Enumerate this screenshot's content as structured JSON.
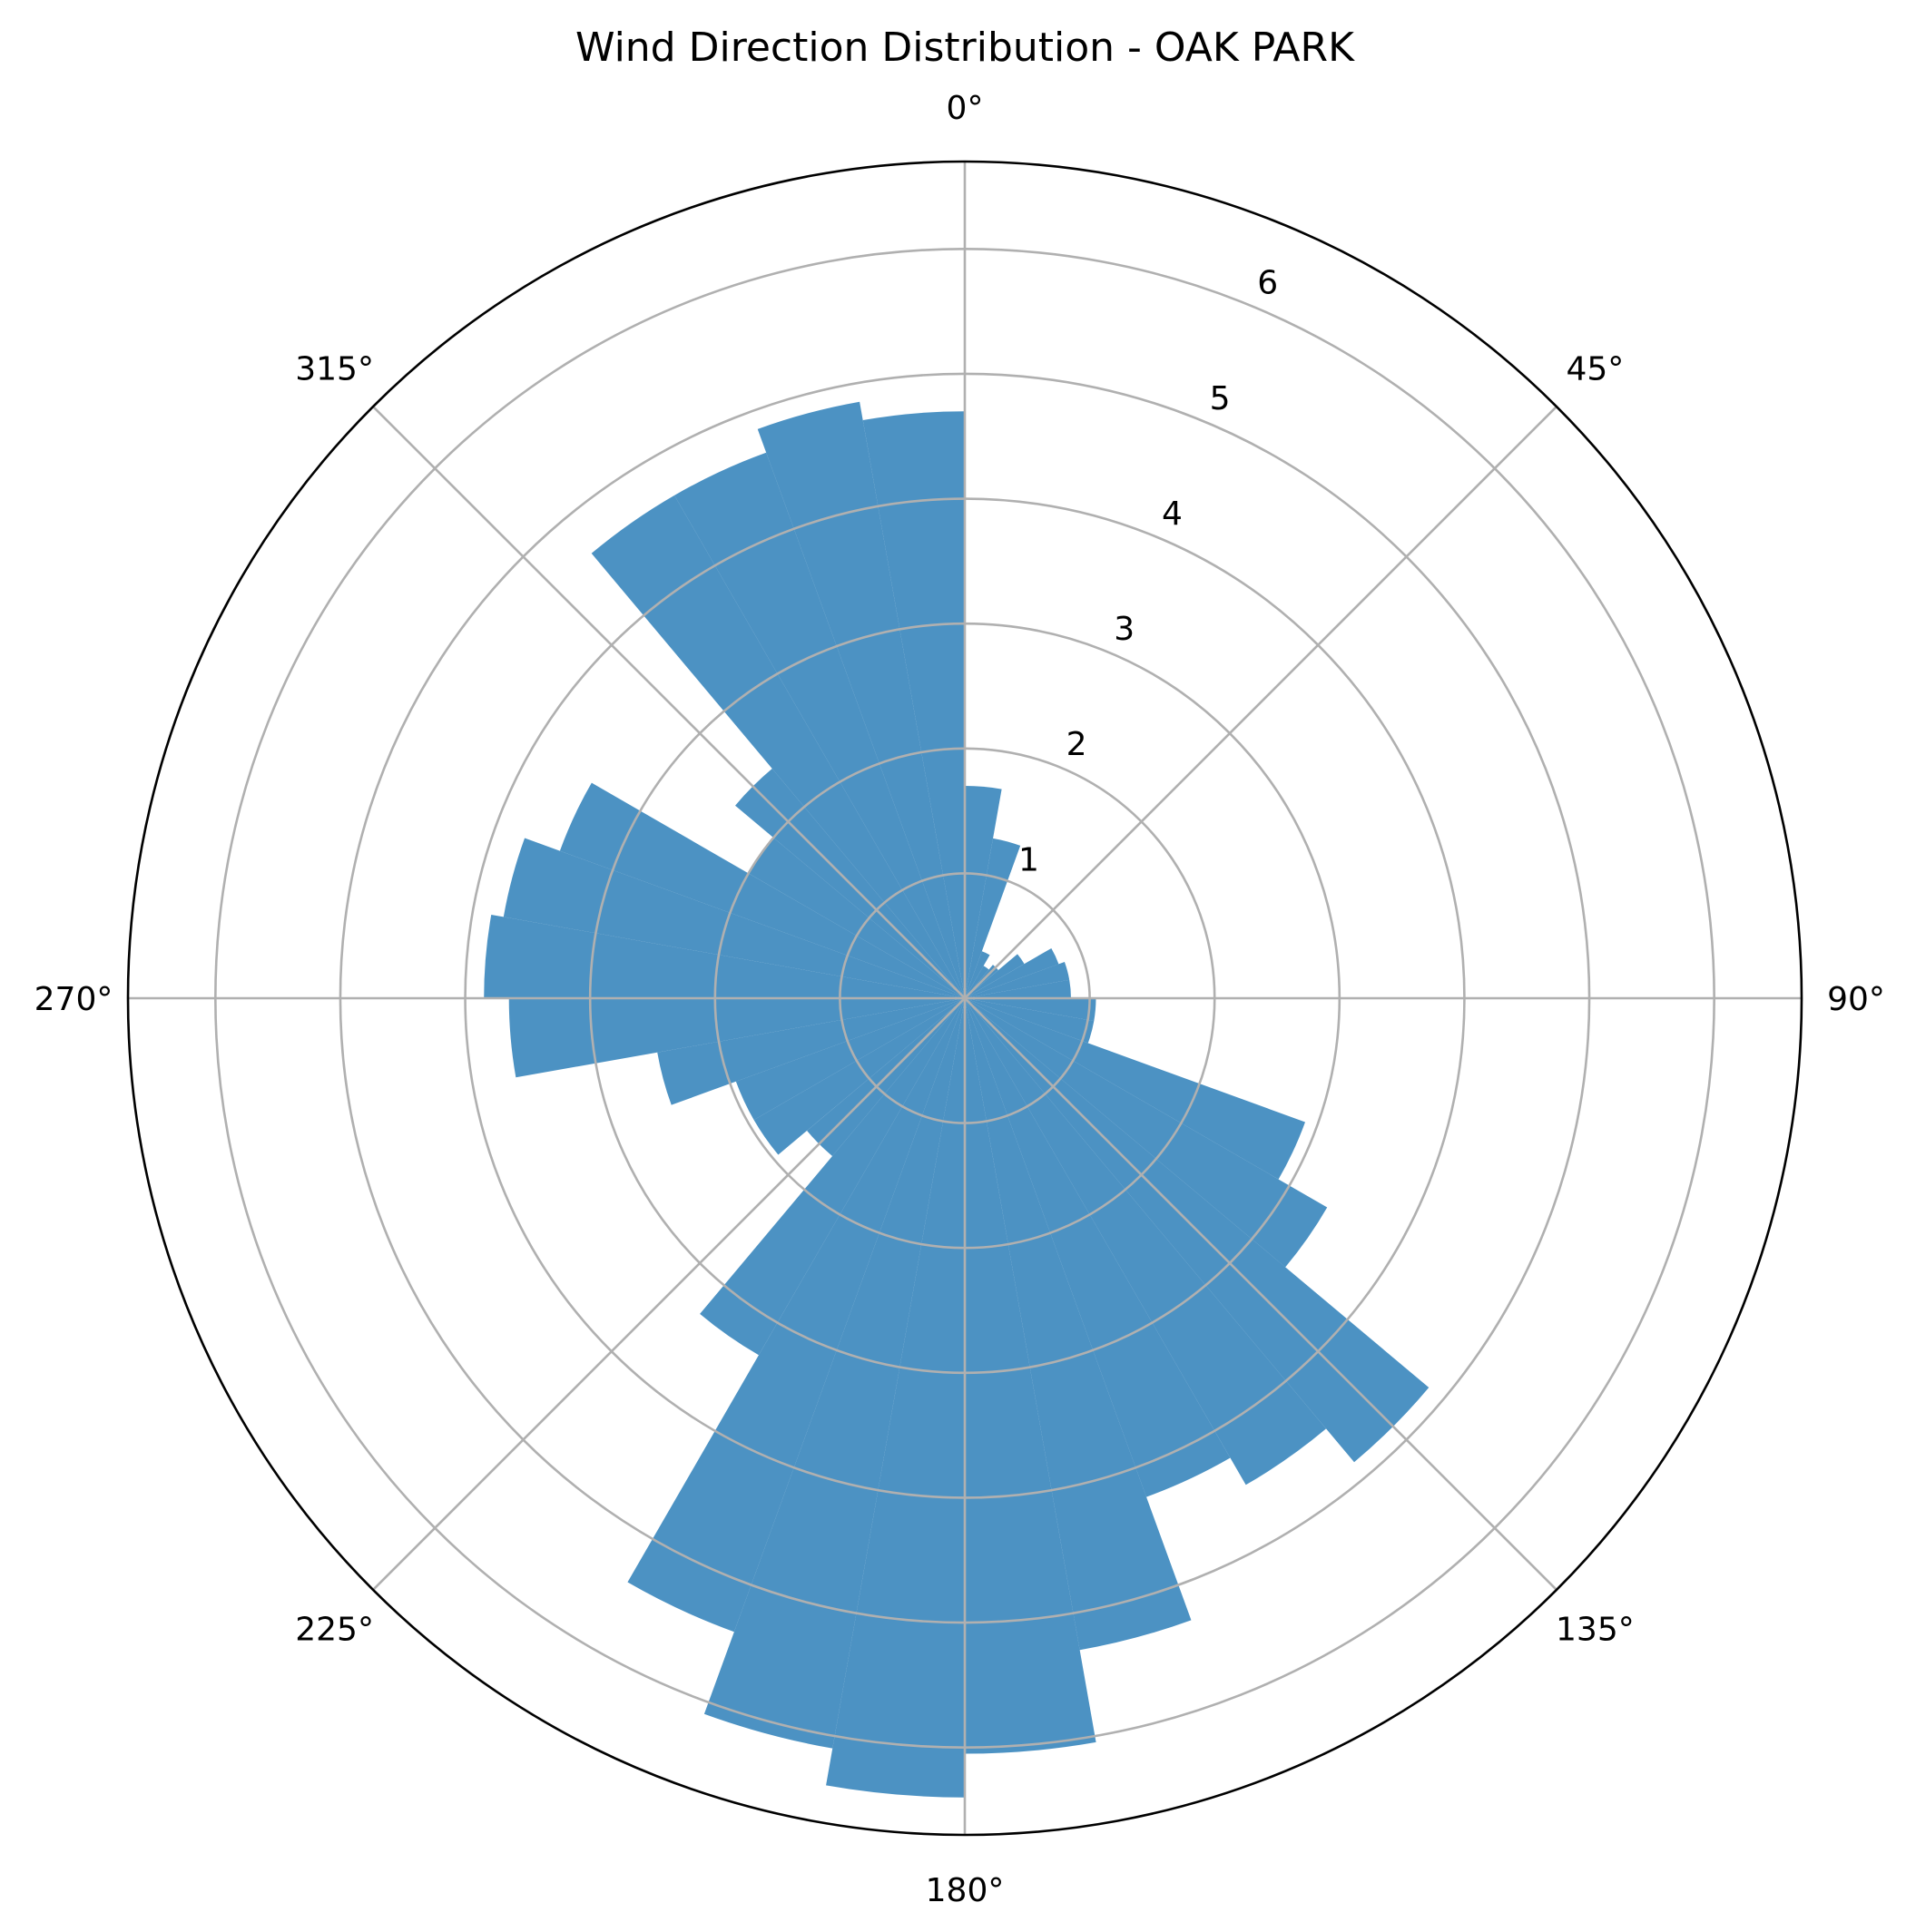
{
  "chart_data": {
    "type": "bar",
    "subtype": "polar-histogram",
    "title": "Wind Direction Distribution - OAK PARK",
    "color": "#1f77b4",
    "theta_zero": "N",
    "theta_direction": "clockwise",
    "angle_ticks": [
      "0°",
      "45°",
      "90°",
      "135°",
      "180°",
      "225°",
      "270°",
      "315°"
    ],
    "radial_ticks": [
      "1",
      "2",
      "3",
      "4",
      "5",
      "6"
    ],
    "rlim": [
      0,
      6.7
    ],
    "grid": true,
    "bin_width_deg": 10,
    "bins": {
      "direction_deg": [
        5,
        15,
        25,
        35,
        45,
        55,
        65,
        75,
        85,
        95,
        105,
        115,
        125,
        135,
        145,
        155,
        165,
        175,
        185,
        195,
        205,
        215,
        225,
        235,
        245,
        255,
        265,
        275,
        285,
        295,
        305,
        315,
        325,
        335,
        345,
        355
      ],
      "frequency": [
        1.7,
        1.3,
        0.4,
        0.3,
        0.35,
        0.55,
        0.8,
        0.85,
        0.85,
        1.05,
        1.05,
        2.9,
        3.35,
        4.85,
        4.5,
        4.25,
        5.3,
        6.05,
        6.4,
        6.1,
        5.4,
        3.3,
        1.65,
        1.95,
        1.95,
        2.5,
        3.65,
        3.85,
        3.75,
        3.45,
        2.0,
        2.4,
        4.65,
        4.65,
        4.85,
        4.7
      ]
    }
  }
}
